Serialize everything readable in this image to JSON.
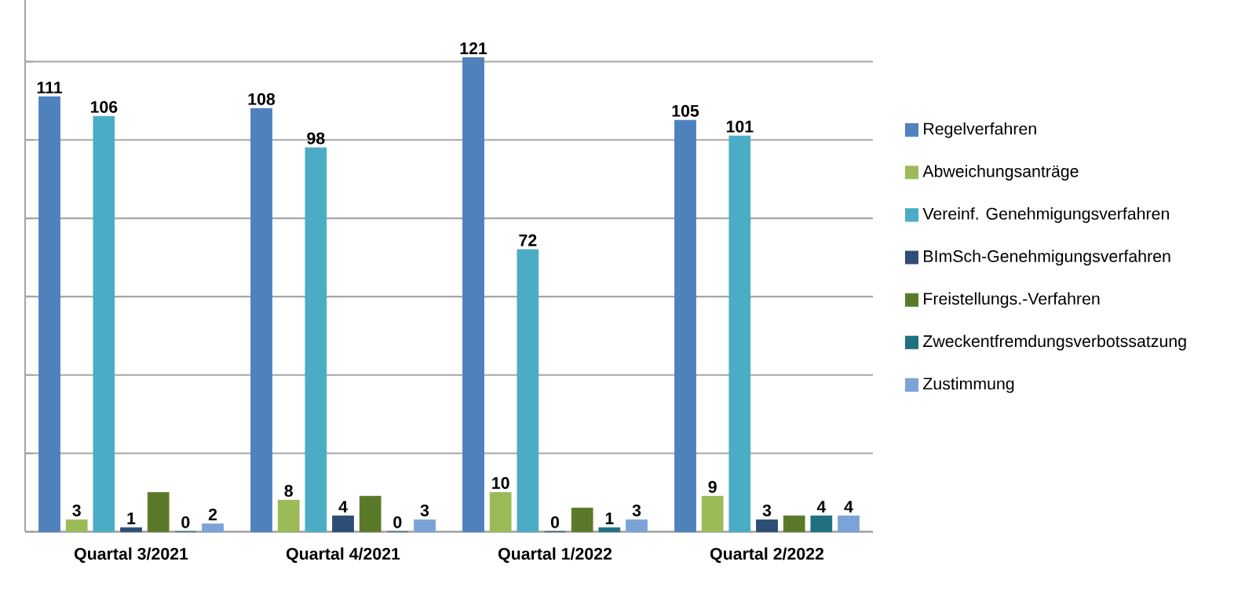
{
  "chart_data": {
    "type": "bar",
    "categories": [
      "Quartal 3/2021",
      "Quartal 4/2021",
      "Quartal 1/2022",
      "Quartal 2/2022"
    ],
    "series": [
      {
        "name": "Regelverfahren",
        "color": "#4f81bd",
        "values": [
          111,
          108,
          121,
          105
        ],
        "value_labels": [
          "111",
          "108",
          "121",
          "105"
        ]
      },
      {
        "name": "Abweichungsanträge",
        "color": "#9bbb59",
        "values": [
          3,
          8,
          10,
          9
        ],
        "value_labels": [
          "3",
          "8",
          "10",
          "9"
        ]
      },
      {
        "name": "Vereinf. Genehmigungsverfahren",
        "color": "#4bacc6",
        "values": [
          106,
          98,
          72,
          101
        ],
        "value_labels": [
          "106",
          "98",
          "72",
          "101"
        ]
      },
      {
        "name": "BImSch-Genehmigungsverfahren",
        "color": "#2c4d75",
        "values": [
          1,
          4,
          0,
          3
        ],
        "value_labels": [
          "1",
          "4",
          "0",
          "3"
        ]
      },
      {
        "name": "Freistellungs.-Verfahren",
        "color": "#5a7a2a",
        "values": [
          10,
          9,
          6,
          4
        ]
      },
      {
        "name": "Zweckentfremdungsverbotssatzung",
        "color": "#1f7080",
        "values": [
          0,
          0,
          1,
          4
        ],
        "value_labels": [
          "0",
          "0",
          "1",
          "4"
        ]
      },
      {
        "name": "Zustimmung",
        "color": "#7ba3d8",
        "values": [
          2,
          3,
          3,
          4
        ],
        "value_labels": [
          "2",
          "3",
          "3",
          "4"
        ]
      }
    ],
    "ylim": [
      0,
      140
    ],
    "yticks": [
      {
        "value": 0,
        "label": null
      },
      {
        "value": 20,
        "label": null
      },
      {
        "value": 40,
        "label": null
      },
      {
        "value": 60,
        "label": null
      },
      {
        "value": 80,
        "label": null
      },
      {
        "value": 100,
        "label": null
      },
      {
        "value": 120,
        "label": null
      },
      {
        "value": 140,
        "label": null
      }
    ],
    "grid": "y",
    "legend": "right",
    "tick_labels": "x"
  }
}
